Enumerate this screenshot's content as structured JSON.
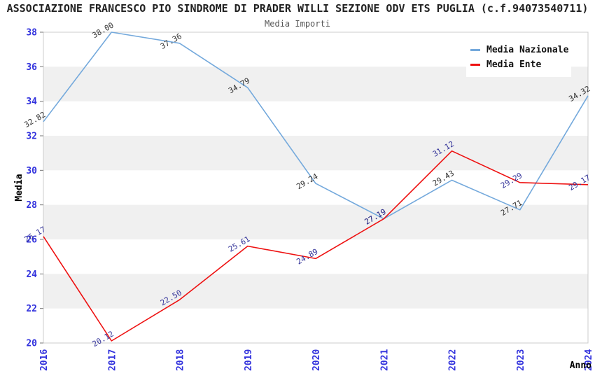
{
  "header": {
    "title": "ASSOCIAZIONE FRANCESCO PIO SINDROME DI PRADER WILLI SEZIONE  ODV ETS PUGLIA (c.f.94073540711)",
    "subtitle": "Media Importi"
  },
  "chart_data": {
    "type": "line",
    "title": "ASSOCIAZIONE FRANCESCO PIO SINDROME DI PRADER WILLI SEZIONE  ODV ETS PUGLIA (c.f.94073540711)",
    "subtitle": "Media Importi",
    "categories": [
      "2016",
      "2017",
      "2018",
      "2019",
      "2020",
      "2021",
      "2022",
      "2023",
      "2024"
    ],
    "series": [
      {
        "name": "Media Nazionale",
        "color": "#74a9dc",
        "label_color": "#333333",
        "values": [
          32.82,
          38.0,
          37.36,
          34.79,
          29.24,
          27.19,
          29.43,
          27.71,
          34.32
        ]
      },
      {
        "name": "Media Ente",
        "color": "#ee1111",
        "label_color": "#333399",
        "values": [
          26.17,
          20.12,
          22.5,
          25.61,
          24.89,
          27.19,
          31.12,
          29.29,
          29.17
        ]
      }
    ],
    "xlabel": "Anno",
    "ylabel": "Media",
    "ylim": [
      20,
      38
    ],
    "ytick_step": 2,
    "yticks": [
      20,
      22,
      24,
      26,
      28,
      30,
      32,
      34,
      36,
      38
    ],
    "grid": "alternating-bands",
    "legend_position": "top-right",
    "colors": {
      "band": "#f0f0f0",
      "plot_border": "#cccccc",
      "tick_label": "#3232dd",
      "axis_title": "#000000",
      "tick_mark": "#777777"
    }
  }
}
